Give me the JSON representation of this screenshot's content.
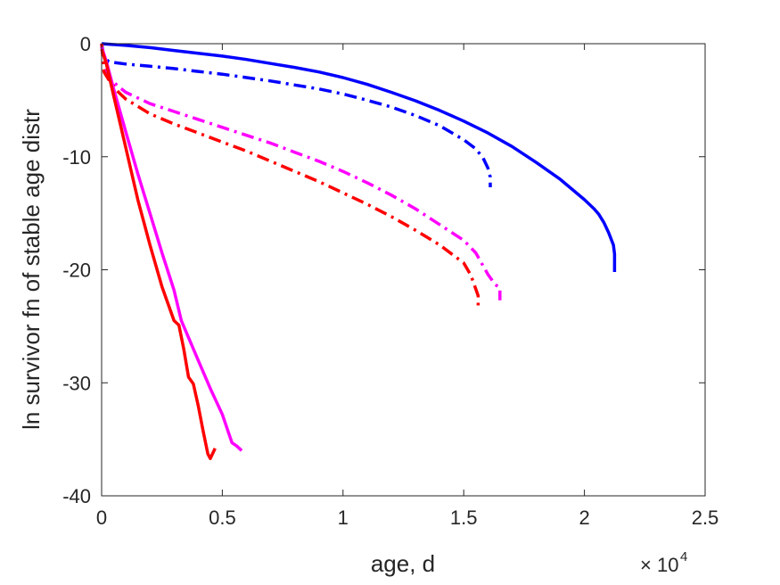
{
  "chart_data": {
    "type": "line",
    "title": "",
    "xlabel": "age, d",
    "ylabel": "ln survivor fn of stable age distr",
    "x_exponent_label": "10",
    "x_exponent_power": "4",
    "xlim": [
      0,
      25000
    ],
    "ylim": [
      -40,
      0
    ],
    "xticks": [
      0,
      5000,
      10000,
      15000,
      20000,
      25000
    ],
    "xtick_labels": [
      "0",
      "0.5",
      "1",
      "1.5",
      "2",
      "2.5"
    ],
    "yticks": [
      -40,
      -30,
      -20,
      -10,
      0
    ],
    "ytick_labels": [
      "-40",
      "-30",
      "-20",
      "-10",
      "0"
    ],
    "grid": false,
    "series": [
      {
        "color": "#0000FF",
        "style": "solid",
        "x": [
          0,
          1000,
          2000,
          3000,
          4000,
          5000,
          6000,
          7000,
          8000,
          9000,
          10000,
          11000,
          12000,
          13000,
          14000,
          15000,
          16000,
          17000,
          18000,
          19000,
          20000,
          20400,
          20600,
          20800,
          21000,
          21200,
          21250,
          21250
        ],
        "y": [
          0,
          -0.15,
          -0.35,
          -0.6,
          -0.85,
          -1.1,
          -1.4,
          -1.75,
          -2.1,
          -2.5,
          -3.0,
          -3.6,
          -4.3,
          -5.05,
          -5.9,
          -6.85,
          -7.9,
          -9.1,
          -10.5,
          -12.0,
          -13.8,
          -14.6,
          -15.1,
          -15.8,
          -16.7,
          -17.8,
          -18.6,
          -20.2
        ]
      },
      {
        "color": "#0000FF",
        "style": "dashdot",
        "x": [
          0,
          100,
          300,
          1000,
          2000,
          3000,
          4000,
          5000,
          6000,
          7000,
          8000,
          9000,
          10000,
          11000,
          12000,
          13000,
          14000,
          15000,
          15500,
          15800,
          16000,
          16100,
          16100
        ],
        "y": [
          0,
          -1.2,
          -1.6,
          -1.8,
          -2.0,
          -2.2,
          -2.45,
          -2.7,
          -3.0,
          -3.3,
          -3.65,
          -4.0,
          -4.45,
          -5.0,
          -5.6,
          -6.35,
          -7.25,
          -8.5,
          -9.3,
          -10.1,
          -11.0,
          -11.8,
          -12.7
        ]
      },
      {
        "color": "#FF00FF",
        "style": "dashdot",
        "x": [
          0,
          100,
          300,
          700,
          1000,
          2000,
          3000,
          4000,
          5000,
          6000,
          7000,
          8000,
          9000,
          10000,
          11000,
          12000,
          13000,
          14000,
          15000,
          15500,
          16000,
          16300,
          16500,
          16500
        ],
        "y": [
          0,
          -2.2,
          -3.0,
          -3.8,
          -4.3,
          -5.3,
          -6.0,
          -6.7,
          -7.4,
          -8.1,
          -8.8,
          -9.6,
          -10.4,
          -11.3,
          -12.3,
          -13.4,
          -14.6,
          -16.0,
          -17.4,
          -18.5,
          -20.4,
          -21.3,
          -21.6,
          -22.7
        ]
      },
      {
        "color": "#FF0000",
        "style": "dashdot",
        "x": [
          0,
          100,
          300,
          700,
          1000,
          2000,
          3000,
          4000,
          5000,
          6000,
          7000,
          8000,
          9000,
          10000,
          11000,
          12000,
          13000,
          14000,
          15000,
          15300,
          15500,
          15600,
          15600
        ],
        "y": [
          0,
          -2.5,
          -3.2,
          -4.3,
          -4.9,
          -6.2,
          -7.1,
          -7.9,
          -8.7,
          -9.5,
          -10.4,
          -11.3,
          -12.2,
          -13.2,
          -14.2,
          -15.3,
          -16.5,
          -17.8,
          -19.4,
          -20.5,
          -21.7,
          -22.3,
          -23.2
        ]
      },
      {
        "color": "#FF00FF",
        "style": "solid",
        "x": [
          0,
          200,
          500,
          1000,
          1500,
          2000,
          2500,
          3000,
          3300,
          3500,
          4000,
          4500,
          5000,
          5400,
          5600,
          5800
        ],
        "y": [
          -0.3,
          -1.6,
          -4.0,
          -7.8,
          -11.5,
          -15.0,
          -18.5,
          -21.8,
          -24.5,
          -25.5,
          -28.0,
          -30.5,
          -32.8,
          -35.3,
          -35.6,
          -36.0
        ]
      },
      {
        "color": "#FF0000",
        "style": "solid",
        "x": [
          0,
          200,
          500,
          1000,
          1500,
          2000,
          2500,
          3000,
          3200,
          3400,
          3600,
          3800,
          4000,
          4200,
          4400,
          4500,
          4700
        ],
        "y": [
          -0.5,
          -1.8,
          -4.6,
          -9.2,
          -13.8,
          -17.8,
          -21.5,
          -24.5,
          -24.9,
          -27.0,
          -29.5,
          -30.1,
          -32.0,
          -34.2,
          -36.3,
          -36.7,
          -35.8
        ]
      }
    ]
  }
}
